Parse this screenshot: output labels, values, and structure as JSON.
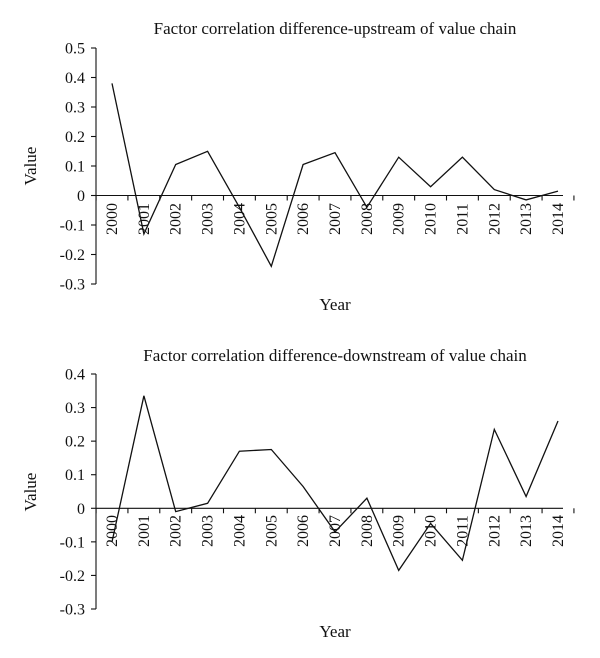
{
  "chart_data": [
    {
      "type": "line",
      "title": "Factor correlation difference-upstream of value chain",
      "xlabel": "Year",
      "ylabel": "Value",
      "x": [
        "2000",
        "2001",
        "2002",
        "2003",
        "2004",
        "2005",
        "2006",
        "2007",
        "2008",
        "2009",
        "2010",
        "2011",
        "2012",
        "2013",
        "2014"
      ],
      "values": [
        0.38,
        -0.13,
        0.105,
        0.15,
        -0.04,
        -0.24,
        0.105,
        0.145,
        -0.04,
        0.13,
        0.03,
        0.13,
        0.02,
        -0.015,
        0.015
      ],
      "ylim": [
        -0.3,
        0.5
      ],
      "yticks": [
        "0.5",
        "0.4",
        "0.3",
        "0.2",
        "0.1",
        "0",
        "-0.1",
        "-0.2",
        "-0.3"
      ],
      "grid": false,
      "legend": "none"
    },
    {
      "type": "line",
      "title": "Factor correlation difference-downstream of value chain",
      "xlabel": "Year",
      "ylabel": "Value",
      "x": [
        "2000",
        "2001",
        "2002",
        "2003",
        "2004",
        "2005",
        "2006",
        "2007",
        "2008",
        "2009",
        "2010",
        "2011",
        "2012",
        "2013",
        "2014"
      ],
      "values": [
        -0.1,
        0.335,
        -0.01,
        0.015,
        0.17,
        0.175,
        0.065,
        -0.07,
        0.03,
        -0.185,
        -0.045,
        -0.155,
        0.235,
        0.035,
        0.26
      ],
      "ylim": [
        -0.3,
        0.4
      ],
      "yticks": [
        "0.4",
        "0.3",
        "0.2",
        "0.1",
        "0",
        "-0.1",
        "-0.2",
        "-0.3"
      ],
      "grid": false,
      "legend": "none"
    }
  ]
}
